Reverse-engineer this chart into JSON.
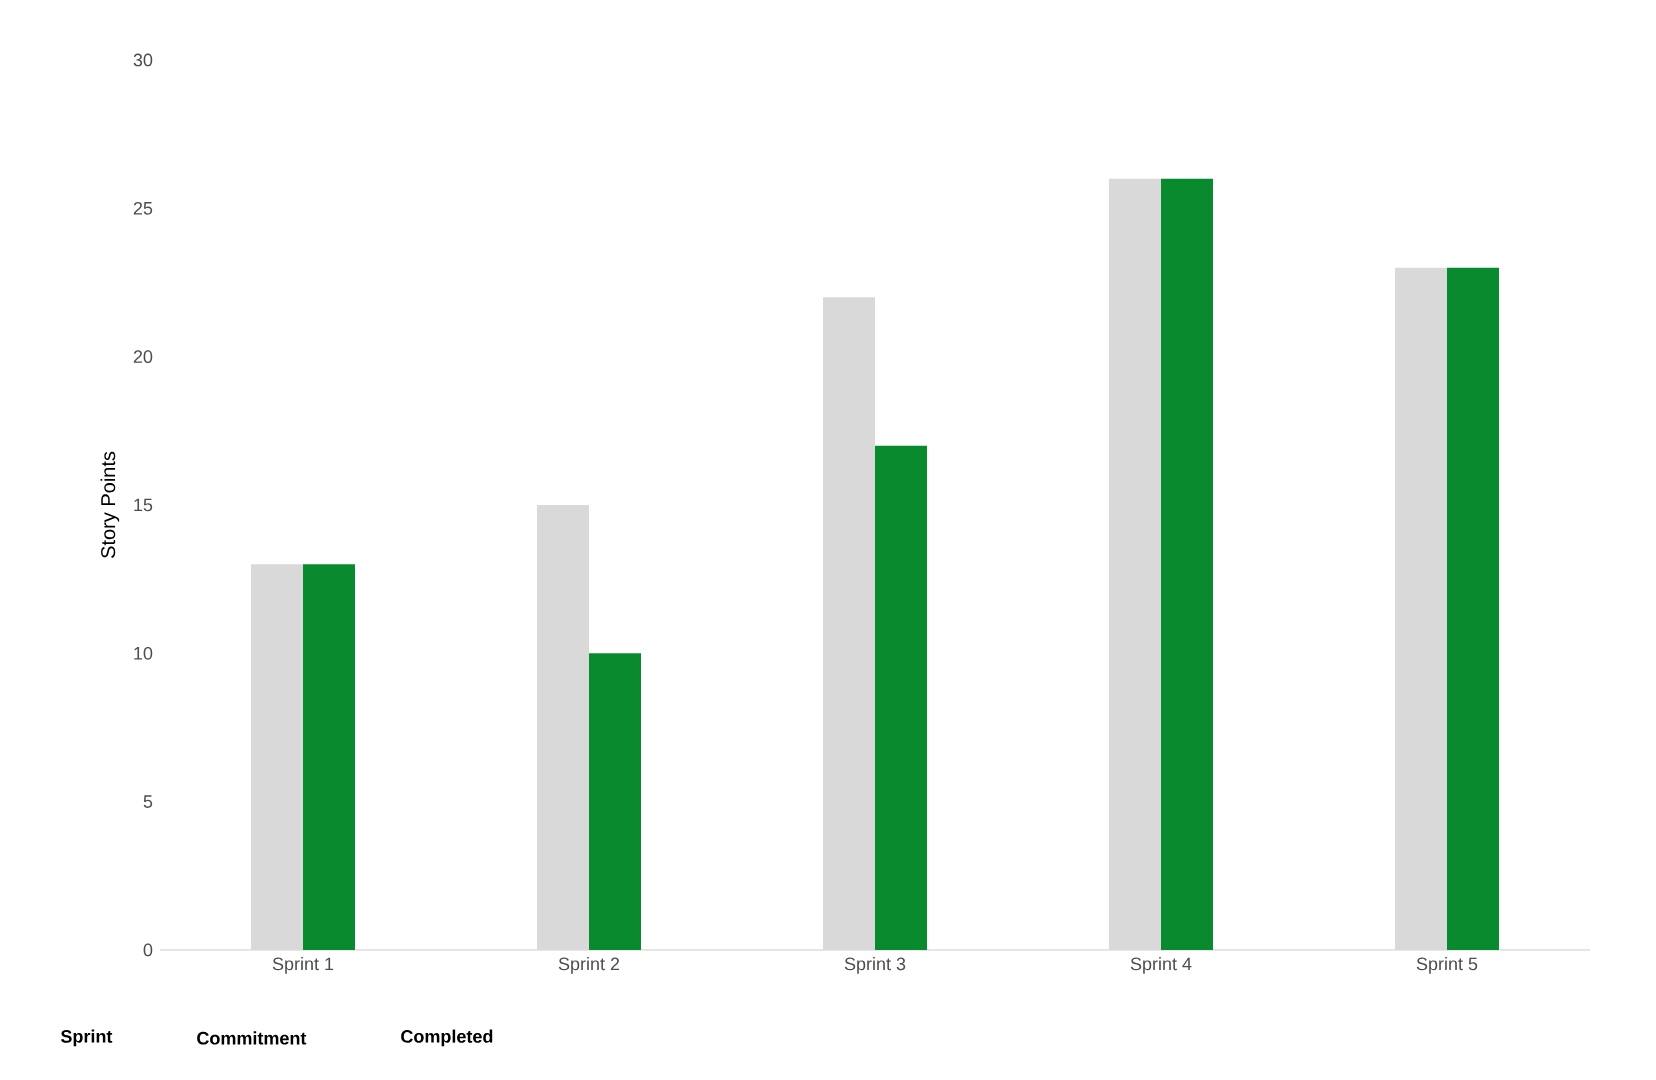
{
  "chart_data": {
    "type": "bar",
    "ylabel": "Story Points",
    "categories": [
      "Sprint 1",
      "Sprint 2",
      "Sprint 3",
      "Sprint 4",
      "Sprint 5"
    ],
    "series": [
      {
        "color": "#d9d9d9",
        "values": [
          13,
          15,
          22,
          26,
          23
        ]
      },
      {
        "color": "#0a8a2e",
        "values": [
          13,
          10,
          17,
          26,
          23
        ]
      }
    ],
    "ylim": [
      0,
      30
    ],
    "yticks": [
      0,
      5,
      10,
      15,
      20,
      25,
      30
    ],
    "annotations": [
      "Sprint",
      "Commitment",
      "Completed"
    ]
  }
}
